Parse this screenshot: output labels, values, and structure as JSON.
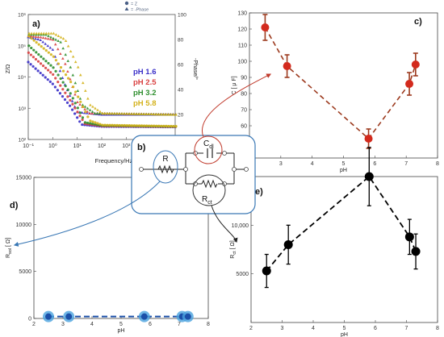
{
  "chart_data": [
    {
      "panel": "a)",
      "type": "line",
      "xlabel": "Frequency/Hz",
      "ylabel": "Z/Ω",
      "y2label": "-Phase/°",
      "xscale": "log",
      "yscale": "log",
      "xlim": [
        0.1,
        100000
      ],
      "ylim": [
        100,
        1000000
      ],
      "y2lim": [
        0,
        100
      ],
      "xticks": [
        "10⁻¹",
        "10⁰",
        "10¹",
        "10²",
        "10³",
        "10⁴",
        "10⁵"
      ],
      "yticks": [
        "10²",
        "10³",
        "10⁴",
        "10⁵",
        "10⁶"
      ],
      "y2ticks": [
        "20",
        "40",
        "60",
        "80",
        "100"
      ],
      "legend_markers": [
        {
          "label": "Z",
          "color": "#4a5f86"
        },
        {
          "label": "-Phase",
          "color": "#4a5f86"
        }
      ],
      "legend": [
        {
          "label": "pH  1.6",
          "color": "#3a2fc8"
        },
        {
          "label": "pH  2.5",
          "color": "#d94040"
        },
        {
          "label": "pH  3.2",
          "color": "#2f8f2f"
        },
        {
          "label": "pH  5.8",
          "color": "#d4b21c"
        }
      ],
      "series": [
        {
          "name": "pH  1.6",
          "color": "#3a2fc8",
          "phase": [
            [
              0.1,
              82
            ],
            [
              0.3,
              80
            ],
            [
              1,
              72
            ],
            [
              3,
              45
            ],
            [
              10,
              22
            ],
            [
              100,
              20
            ],
            [
              100000,
              20
            ]
          ],
          "z": [
            [
              0.1,
              30000
            ],
            [
              1,
              6000
            ],
            [
              5,
              1200
            ],
            [
              15,
              300
            ],
            [
              100,
              260
            ],
            [
              100000,
              250
            ]
          ]
        },
        {
          "name": "pH  2.5",
          "color": "#d94040",
          "phase": [
            [
              0.1,
              83
            ],
            [
              0.3,
              82
            ],
            [
              1,
              80
            ],
            [
              3,
              62
            ],
            [
              10,
              30
            ],
            [
              30,
              21
            ],
            [
              100000,
              20
            ]
          ],
          "z": [
            [
              0.1,
              60000
            ],
            [
              1,
              12000
            ],
            [
              5,
              1800
            ],
            [
              20,
              320
            ],
            [
              100,
              270
            ],
            [
              100000,
              255
            ]
          ]
        },
        {
          "name": "pH  3.2",
          "color": "#2f8f2f",
          "phase": [
            [
              0.1,
              84
            ],
            [
              0.5,
              84
            ],
            [
              2,
              78
            ],
            [
              5,
              58
            ],
            [
              15,
              28
            ],
            [
              50,
              21
            ],
            [
              100000,
              20
            ]
          ],
          "z": [
            [
              0.1,
              100000
            ],
            [
              1,
              20000
            ],
            [
              5,
              3000
            ],
            [
              20,
              350
            ],
            [
              100,
              280
            ],
            [
              100000,
              260
            ]
          ]
        },
        {
          "name": "pH  5.8",
          "color": "#d4b21c",
          "phase": [
            [
              0.1,
              85
            ],
            [
              1,
              85
            ],
            [
              3,
              80
            ],
            [
              10,
              58
            ],
            [
              30,
              28
            ],
            [
              100,
              21
            ],
            [
              100000,
              20
            ]
          ],
          "z": [
            [
              0.1,
              200000
            ],
            [
              1,
              45000
            ],
            [
              5,
              7000
            ],
            [
              30,
              400
            ],
            [
              100,
              290
            ],
            [
              100000,
              265
            ]
          ]
        }
      ]
    },
    {
      "panel": "c)",
      "type": "scatter",
      "xlabel": "pH",
      "ylabel": "C [ μ F]",
      "xlim": [
        2,
        8
      ],
      "ylim": [
        40,
        130
      ],
      "xticks": [
        2,
        3,
        4,
        5,
        6,
        7,
        8
      ],
      "yticks": [
        40,
        50,
        60,
        70,
        80,
        90,
        100,
        110,
        120,
        130
      ],
      "color": "#d32a1d",
      "line_color": "#9c3a1e",
      "points": [
        {
          "x": 2.5,
          "y": 121,
          "err": 8
        },
        {
          "x": 3.2,
          "y": 97,
          "err": 7
        },
        {
          "x": 5.8,
          "y": 52,
          "err": 6
        },
        {
          "x": 7.1,
          "y": 86,
          "err": 7
        },
        {
          "x": 7.3,
          "y": 98,
          "err": 7
        }
      ]
    },
    {
      "panel": "d)",
      "type": "scatter",
      "xlabel": "pH",
      "ylabel": "R_sol [ Ω]",
      "xlim": [
        2,
        8
      ],
      "ylim": [
        0,
        15000
      ],
      "xticks": [
        2,
        3,
        4,
        5,
        6,
        7,
        8
      ],
      "yticks": [
        0,
        5000,
        10000,
        15000
      ],
      "color": "#1b4fa8",
      "halo": "#4aa3df",
      "points": [
        {
          "x": 2.5,
          "y": 200
        },
        {
          "x": 3.2,
          "y": 200
        },
        {
          "x": 5.8,
          "y": 200
        },
        {
          "x": 7.1,
          "y": 200
        },
        {
          "x": 7.3,
          "y": 200
        }
      ]
    },
    {
      "panel": "e)",
      "type": "scatter",
      "xlabel": "pH",
      "ylabel": "R_ct [ Ω]",
      "xlim": [
        2,
        8
      ],
      "ylim": [
        0,
        15000
      ],
      "xticks": [
        2,
        3,
        4,
        5,
        6,
        7,
        8
      ],
      "yticks": [
        5000,
        10000,
        15000
      ],
      "ytick_labels": [
        "5000",
        "10,000",
        "15,000"
      ],
      "color": "#000000",
      "points": [
        {
          "x": 2.5,
          "y": 5300,
          "err": 1700
        },
        {
          "x": 3.2,
          "y": 8000,
          "err": 2000
        },
        {
          "x": 5.8,
          "y": 15000,
          "err": 3000
        },
        {
          "x": 7.1,
          "y": 8800,
          "err": 1800
        },
        {
          "x": 7.3,
          "y": 7300,
          "err": 1800
        }
      ]
    }
  ],
  "circuit": {
    "panel": "b)",
    "labels": {
      "r": "R",
      "cdl": "C",
      "cdl_sub": "dl",
      "rct": "R",
      "rct_sub": "ct"
    }
  }
}
